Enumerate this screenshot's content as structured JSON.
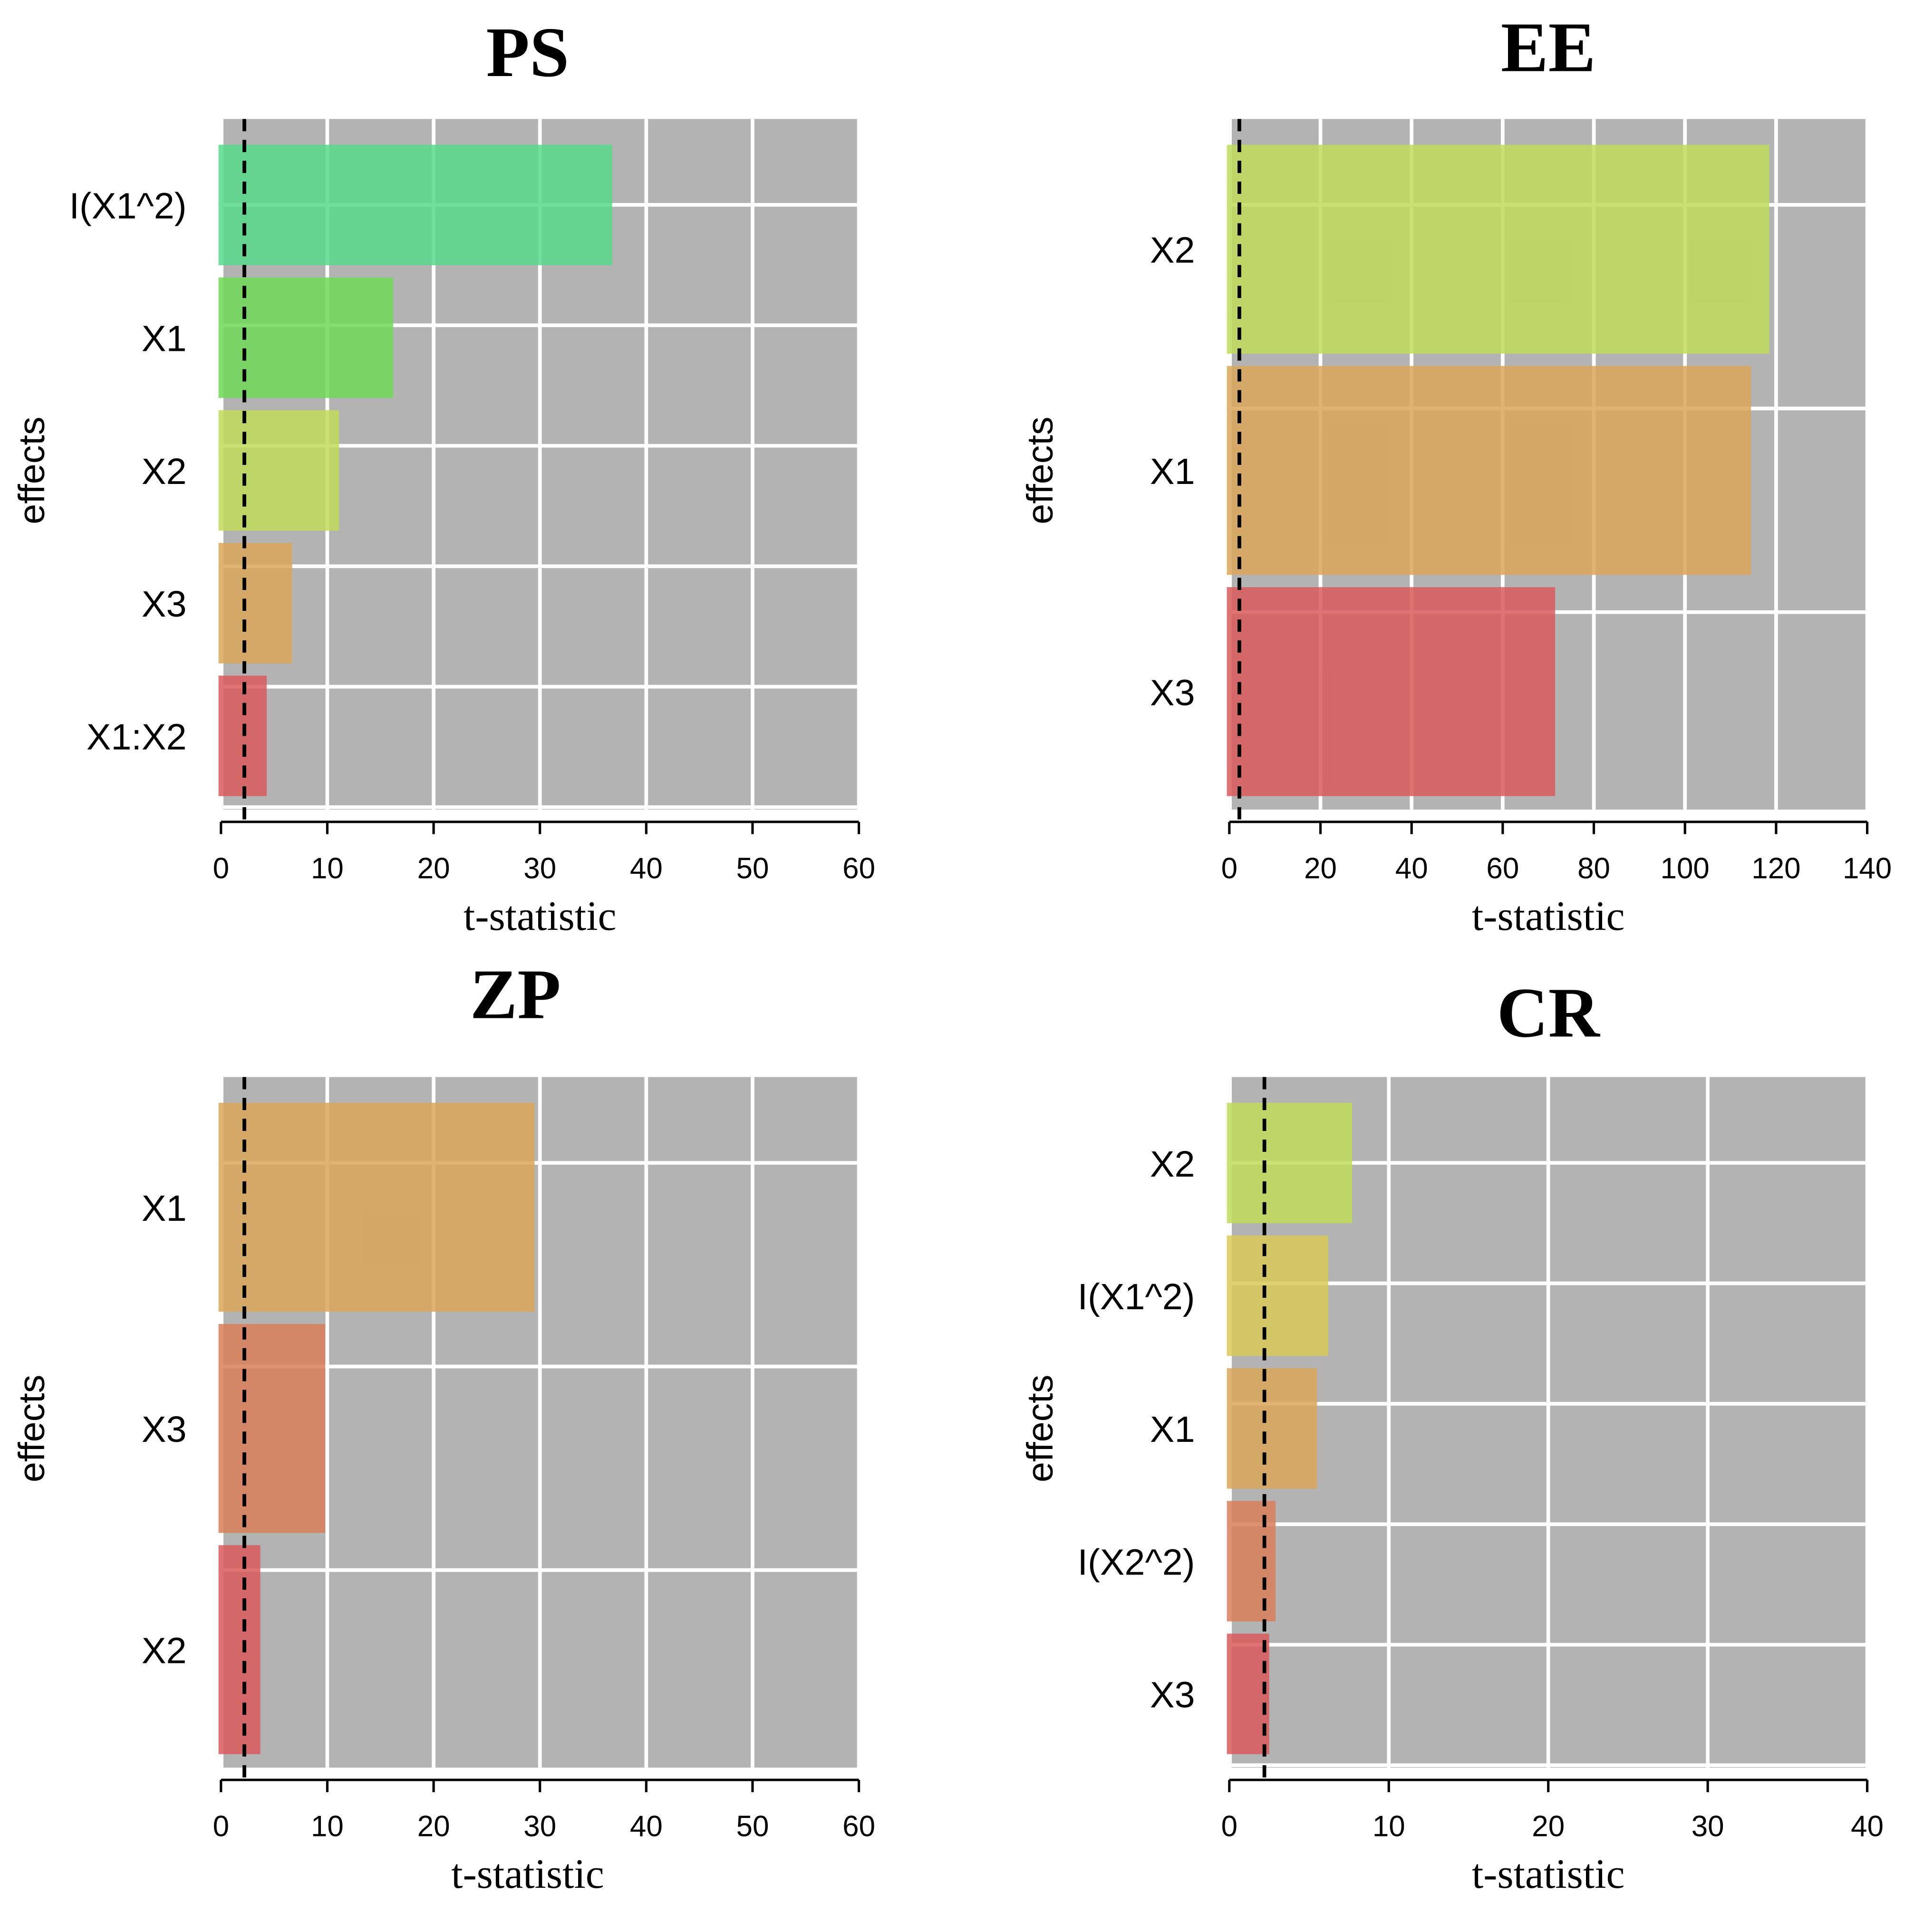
{
  "chart_data": [
    {
      "type": "bar",
      "orientation": "horizontal",
      "title": "PS",
      "xlabel": "t-statistic",
      "ylabel": "effects",
      "xlim": [
        0,
        60
      ],
      "xticks": [
        "0",
        "10",
        "20",
        "30",
        "40",
        "50",
        "60"
      ],
      "threshold": 2.2,
      "categories": [
        "I(X1^2)",
        "X1",
        "X2",
        "X3",
        "X1:X2"
      ],
      "values": [
        36.8,
        16.2,
        11.1,
        6.7,
        4.3
      ],
      "colors": [
        "#57d98a",
        "#70d957",
        "#c0da59",
        "#d9a659",
        "#d95959"
      ]
    },
    {
      "type": "bar",
      "orientation": "horizontal",
      "title": "EE",
      "xlabel": "t-statistic",
      "ylabel": "effects",
      "xlim": [
        0,
        140
      ],
      "xticks": [
        "0",
        "20",
        "40",
        "60",
        "80",
        "100",
        "120",
        "140"
      ],
      "threshold": 2.2,
      "categories": [
        "X2",
        "X1",
        "X3"
      ],
      "values": [
        118.5,
        114.5,
        71.5
      ],
      "colors": [
        "#c0da59",
        "#d9a659",
        "#d95959"
      ]
    },
    {
      "type": "bar",
      "orientation": "horizontal",
      "title": "ZP",
      "xlabel": "t-statistic",
      "ylabel": "effects",
      "xlim": [
        0,
        60
      ],
      "xticks": [
        "0",
        "10",
        "20",
        "30",
        "40",
        "50",
        "60"
      ],
      "threshold": 2.2,
      "categories": [
        "X1",
        "X3",
        "X2"
      ],
      "values": [
        29.5,
        9.8,
        3.7
      ],
      "colors": [
        "#d9a659",
        "#d97f59",
        "#d95959"
      ]
    },
    {
      "type": "bar",
      "orientation": "horizontal",
      "title": "CR",
      "xlabel": "t-statistic",
      "ylabel": "effects",
      "xlim": [
        0,
        40
      ],
      "xticks": [
        "0",
        "10",
        "20",
        "30",
        "40"
      ],
      "threshold": 2.2,
      "categories": [
        "X2",
        "I(X1^2)",
        "X1",
        "I(X2^2)",
        "X3"
      ],
      "values": [
        7.7,
        6.2,
        5.5,
        2.9,
        2.5
      ],
      "colors": [
        "#c0da59",
        "#d9c959",
        "#d9a659",
        "#d97f59",
        "#d95959"
      ]
    }
  ]
}
